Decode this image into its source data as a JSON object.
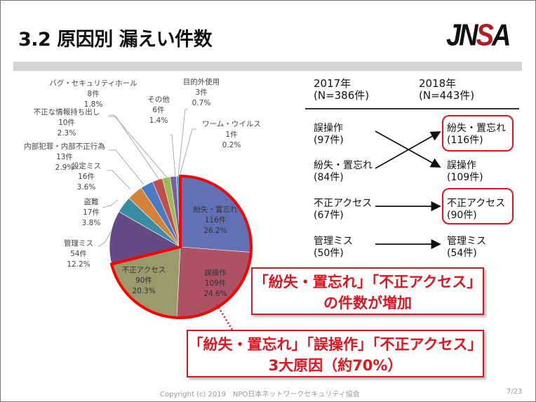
{
  "slide": {
    "title": "3.2 原因別 漏えい件数",
    "logo_text": "JNSA",
    "footer": "Copyright (c) 2019　NPO日本ネットワークセキュリティ協会",
    "page": "7/23"
  },
  "comparison": {
    "col2017": {
      "year": "2017年",
      "n": "(N=386件)"
    },
    "col2018": {
      "year": "2018年",
      "n": "(N=443件)"
    },
    "left": [
      {
        "name": "誤操作",
        "count": "(97件)"
      },
      {
        "name": "紛失・置忘れ",
        "count": "(84件)"
      },
      {
        "name": "不正アクセス",
        "count": "(67件)"
      },
      {
        "name": "管理ミス",
        "count": "(50件)"
      }
    ],
    "right": [
      {
        "name": "紛失・置忘れ",
        "count": "(116件)",
        "highlighted": true
      },
      {
        "name": "誤操作",
        "count": "(109件)",
        "highlighted": false
      },
      {
        "name": "不正アクセス",
        "count": "(90件)",
        "highlighted": true
      },
      {
        "name": "管理ミス",
        "count": "(54件)",
        "highlighted": false
      }
    ]
  },
  "callouts": {
    "increase": {
      "line1": "「紛失・置忘れ」「不正アクセス」",
      "line2": "の件数が増加"
    },
    "top3": {
      "line1": "「紛失・置忘れ」「誤操作」「不正アクセス」",
      "line2": "3大原因（約70%）"
    }
  },
  "colors": {
    "highlight": "#e0141e",
    "logo_accent": "#b01c24"
  },
  "chart_data": {
    "type": "pie",
    "start": "top, clockwise",
    "slices": [
      {
        "name": "紛失・置忘れ",
        "count": "116件",
        "percent": 26.2,
        "label_pct": "26.2%",
        "color": "#6271b5",
        "highlighted": true
      },
      {
        "name": "誤操作",
        "count": "109件",
        "percent": 24.6,
        "label_pct": "24.6%",
        "color": "#ad5165",
        "highlighted": true
      },
      {
        "name": "不正アクセス",
        "count": "90件",
        "percent": 20.3,
        "label_pct": "20.3%",
        "color": "#9a9a6c",
        "highlighted": true
      },
      {
        "name": "管理ミス",
        "count": "54件",
        "percent": 12.2,
        "label_pct": "12.2%",
        "color": "#654b86",
        "highlighted": false
      },
      {
        "name": "盗難",
        "count": "17件",
        "percent": 3.8,
        "label_pct": "3.8%",
        "color": "#3a8ca2",
        "highlighted": false
      },
      {
        "name": "設定ミス",
        "count": "16件",
        "percent": 3.6,
        "label_pct": "3.6%",
        "color": "#d4823a",
        "highlighted": false
      },
      {
        "name": "内部犯罪・内部不正行為",
        "count": "13件",
        "percent": 2.9,
        "label_pct": "2.9%",
        "color": "#4a7cc2",
        "highlighted": false
      },
      {
        "name": "不正な情報持ち出し",
        "count": "10件",
        "percent": 2.3,
        "label_pct": "2.3%",
        "color": "#c24d4d",
        "highlighted": false
      },
      {
        "name": "バグ・セキュリティホール",
        "count": "8件",
        "percent": 1.8,
        "label_pct": "1.8%",
        "color": "#9bbb55",
        "highlighted": false
      },
      {
        "name": "その他",
        "count": "6件",
        "percent": 1.4,
        "label_pct": "1.4%",
        "color": "#7d5ea3",
        "highlighted": false
      },
      {
        "name": "目的外使用",
        "count": "3件",
        "percent": 0.7,
        "label_pct": "0.7%",
        "color": "#4aa6c0",
        "highlighted": false
      },
      {
        "name": "ワーム・ウイルス",
        "count": "1件",
        "percent": 0.2,
        "label_pct": "0.2%",
        "color": "#f09a4a",
        "highlighted": false
      }
    ]
  }
}
